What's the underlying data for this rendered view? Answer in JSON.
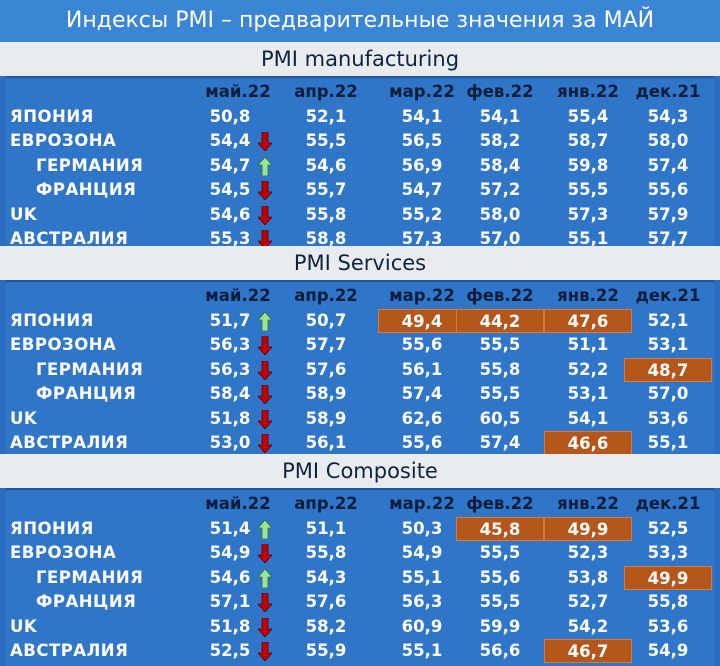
{
  "title": "Индексы PMI – предварительные значения за МАЙ",
  "columns": [
    "май.22",
    "апр.22",
    "мар.22",
    "фев.22",
    "янв.22",
    "дек.21"
  ],
  "sections": [
    {
      "heading": "PMI manufacturing",
      "rows": [
        {
          "country": "ЯПОНИЯ",
          "indent": false,
          "arrow": "",
          "values": [
            "50,8",
            "52,1",
            "54,1",
            "54,1",
            "55,4",
            "54,3"
          ],
          "highlight": []
        },
        {
          "country": "ЕВРОЗОНА",
          "indent": false,
          "arrow": "down",
          "values": [
            "54,4",
            "55,5",
            "56,5",
            "58,2",
            "58,7",
            "58,0"
          ],
          "highlight": []
        },
        {
          "country": "ГЕРМАНИЯ",
          "indent": true,
          "arrow": "up",
          "values": [
            "54,7",
            "54,6",
            "56,9",
            "58,4",
            "59,8",
            "57,4"
          ],
          "highlight": []
        },
        {
          "country": "ФРАНЦИЯ",
          "indent": true,
          "arrow": "down",
          "values": [
            "54,5",
            "55,7",
            "54,7",
            "57,2",
            "55,5",
            "55,6"
          ],
          "highlight": []
        },
        {
          "country": "UK",
          "indent": false,
          "arrow": "down",
          "values": [
            "54,6",
            "55,8",
            "55,2",
            "58,0",
            "57,3",
            "57,9"
          ],
          "highlight": []
        },
        {
          "country": "АВСТРАЛИЯ",
          "indent": false,
          "arrow": "down",
          "values": [
            "55,3",
            "58,8",
            "57,3",
            "57,0",
            "55,1",
            "57,7"
          ],
          "highlight": []
        }
      ]
    },
    {
      "heading": "PMI Services",
      "rows": [
        {
          "country": "ЯПОНИЯ",
          "indent": false,
          "arrow": "up",
          "values": [
            "51,7",
            "50,7",
            "49,4",
            "44,2",
            "47,6",
            "52,1"
          ],
          "highlight": [
            2,
            3,
            4
          ]
        },
        {
          "country": "ЕВРОЗОНА",
          "indent": false,
          "arrow": "down",
          "values": [
            "56,3",
            "57,7",
            "55,6",
            "55,5",
            "51,1",
            "53,1"
          ],
          "highlight": []
        },
        {
          "country": "ГЕРМАНИЯ",
          "indent": true,
          "arrow": "down",
          "values": [
            "56,3",
            "57,6",
            "56,1",
            "55,8",
            "52,2",
            "48,7"
          ],
          "highlight": [
            5
          ]
        },
        {
          "country": "ФРАНЦИЯ",
          "indent": true,
          "arrow": "down",
          "values": [
            "58,4",
            "58,9",
            "57,4",
            "55,5",
            "53,1",
            "57,0"
          ],
          "highlight": []
        },
        {
          "country": "UK",
          "indent": false,
          "arrow": "down",
          "values": [
            "51,8",
            "58,9",
            "62,6",
            "60,5",
            "54,1",
            "53,6"
          ],
          "highlight": []
        },
        {
          "country": "АВСТРАЛИЯ",
          "indent": false,
          "arrow": "down",
          "values": [
            "53,0",
            "56,1",
            "55,6",
            "57,4",
            "46,6",
            "55,1"
          ],
          "highlight": [
            4
          ]
        }
      ]
    },
    {
      "heading": "PMI Composite",
      "rows": [
        {
          "country": "ЯПОНИЯ",
          "indent": false,
          "arrow": "up",
          "values": [
            "51,4",
            "51,1",
            "50,3",
            "45,8",
            "49,9",
            "52,5"
          ],
          "highlight": [
            3,
            4
          ]
        },
        {
          "country": "ЕВРОЗОНА",
          "indent": false,
          "arrow": "down",
          "values": [
            "54,9",
            "55,8",
            "54,9",
            "55,5",
            "52,3",
            "53,3"
          ],
          "highlight": []
        },
        {
          "country": "ГЕРМАНИЯ",
          "indent": true,
          "arrow": "up",
          "values": [
            "54,6",
            "54,3",
            "55,1",
            "55,6",
            "53,8",
            "49,9"
          ],
          "highlight": [
            5
          ]
        },
        {
          "country": "ФРАНЦИЯ",
          "indent": true,
          "arrow": "down",
          "values": [
            "57,1",
            "57,6",
            "56,3",
            "55,5",
            "52,7",
            "55,8"
          ],
          "highlight": []
        },
        {
          "country": "UK",
          "indent": false,
          "arrow": "down",
          "values": [
            "51,8",
            "58,2",
            "60,9",
            "59,9",
            "54,2",
            "53,6"
          ],
          "highlight": []
        },
        {
          "country": "АВСТРАЛИЯ",
          "indent": false,
          "arrow": "down",
          "values": [
            "52,5",
            "55,9",
            "55,1",
            "56,6",
            "46,7",
            "54,9"
          ],
          "highlight": [
            4
          ]
        }
      ]
    }
  ],
  "colors": {
    "highlight": "#b5561a",
    "arrow_down": "#c00000",
    "arrow_up": "#9be39b"
  }
}
